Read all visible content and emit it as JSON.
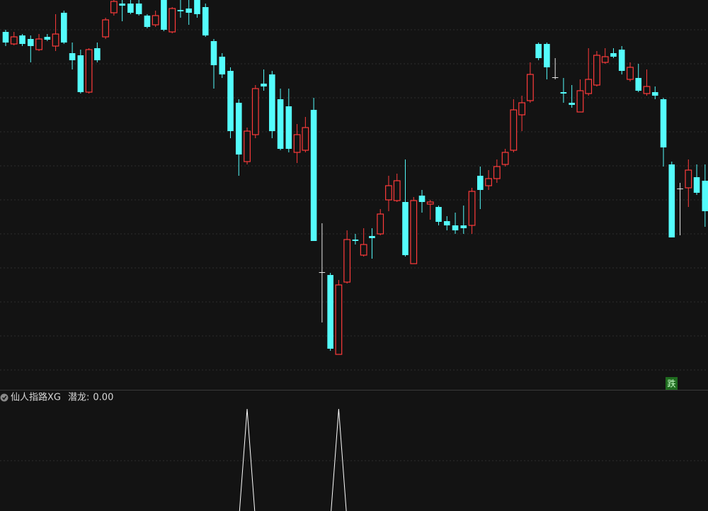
{
  "chart_data": [
    {
      "type": "candlestick",
      "up_color": "#ff3b3b",
      "down_color": "#54fcfc",
      "flat_color": "#e6e6e6",
      "ylim": [
        0,
        520
      ],
      "annotation": "跌",
      "open": [
        475,
        458,
        470,
        465,
        450,
        468,
        455,
        502,
        445,
        442,
        390,
        452,
        468,
        502,
        515,
        515,
        515,
        498,
        485,
        520,
        475,
        506,
        508,
        520,
        510,
        462,
        440,
        420,
        375,
        292,
        330,
        402,
        415,
        380,
        370,
        305,
        308,
        365,
        136,
        132,
        20,
        122,
        182,
        160,
        187,
        190,
        238,
        237,
        235,
        148,
        244,
        232,
        228,
        208,
        202,
        202,
        202,
        272,
        258,
        268,
        288,
        308,
        358,
        378,
        458,
        458,
        411,
        390,
        375,
        362,
        388,
        400,
        432,
        445,
        450,
        408,
        410,
        388,
        390,
        380,
        288,
        254,
        255,
        270,
        265
      ],
      "high": [
        478,
        475,
        472,
        470,
        472,
        472,
        500,
        505,
        460,
        450,
        452,
        460,
        495,
        520,
        520,
        520,
        520,
        500,
        505,
        520,
        510,
        520,
        520,
        520,
        515,
        465,
        445,
        425,
        380,
        340,
        400,
        422,
        420,
        395,
        395,
        345,
        355,
        382,
        205,
        135,
        125,
        195,
        190,
        198,
        198,
        225,
        272,
        275,
        295,
        242,
        252,
        238,
        230,
        215,
        220,
        230,
        255,
        285,
        280,
        295,
        310,
        380,
        385,
        432,
        460,
        460,
        438,
        410,
        400,
        408,
        452,
        448,
        452,
        452,
        455,
        432,
        430,
        422,
        398,
        382,
        292,
        262,
        295,
        288,
        288
      ],
      "low": [
        455,
        456,
        455,
        432,
        448,
        462,
        448,
        458,
        422,
        388,
        388,
        432,
        465,
        498,
        490,
        500,
        498,
        480,
        482,
        476,
        473,
        495,
        485,
        495,
        468,
        395,
        410,
        325,
        272,
        288,
        325,
        392,
        325,
        308,
        305,
        290,
        305,
        180,
        65,
        25,
        20,
        120,
        175,
        158,
        155,
        188,
        222,
        235,
        158,
        148,
        220,
        210,
        202,
        195,
        190,
        190,
        190,
        225,
        252,
        262,
        285,
        305,
        335,
        375,
        435,
        408,
        408,
        375,
        368,
        362,
        385,
        398,
        430,
        438,
        415,
        405,
        390,
        385,
        380,
        285,
        185,
        188,
        228,
        245,
        200
      ],
      "close": [
        460,
        468,
        458,
        455,
        465,
        464,
        472,
        460,
        435,
        390,
        450,
        435,
        492,
        518,
        512,
        502,
        500,
        482,
        498,
        478,
        508,
        504,
        502,
        500,
        470,
        428,
        415,
        335,
        302,
        335,
        395,
        398,
        335,
        310,
        310,
        330,
        340,
        180,
        136,
        28,
        118,
        182,
        180,
        175,
        184,
        218,
        258,
        265,
        160,
        237,
        235,
        235,
        207,
        202,
        195,
        198,
        250,
        252,
        268,
        285,
        305,
        365,
        375,
        415,
        438,
        425,
        411,
        388,
        372,
        392,
        408,
        442,
        440,
        440,
        420,
        425,
        392,
        398,
        385,
        312,
        185,
        254,
        280,
        248,
        222
      ]
    },
    {
      "type": "line",
      "title": "仙人指路XG",
      "ylim": [
        0,
        1
      ],
      "series": [
        {
          "name": "潜龙:",
          "color": "#ffffff",
          "current_value": 0,
          "current_value_label": "0.00",
          "values": [
            0,
            0,
            0,
            0,
            0,
            0,
            0,
            0,
            0,
            0,
            0,
            0,
            0,
            0,
            0,
            0,
            0,
            0,
            0,
            0,
            0,
            0,
            0,
            0,
            0,
            0,
            0,
            0,
            0,
            1,
            0,
            0,
            0,
            0,
            0,
            0,
            0,
            0,
            0,
            0,
            1,
            0,
            0,
            0,
            0,
            0,
            0,
            0,
            0,
            0,
            0,
            0,
            0,
            0,
            0,
            0,
            0,
            0,
            0,
            0,
            0,
            0,
            0,
            0,
            0,
            0,
            0,
            0,
            0,
            0,
            0,
            0,
            0,
            0,
            0,
            0,
            0,
            0,
            0,
            0,
            0,
            0,
            0,
            0,
            0
          ]
        }
      ]
    }
  ]
}
